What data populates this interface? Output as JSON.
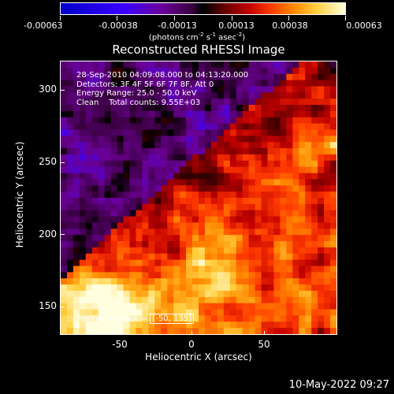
{
  "colorbar": {
    "labels": [
      "-0.00063",
      "-0.00038",
      "-0.00013",
      "0.00013",
      "0.00038",
      "0.00063"
    ],
    "units_prefix": "(photons cm",
    "units_exp1": "-2",
    "units_mid": " s",
    "units_exp2": "-1",
    "units_mid2": " asec",
    "units_exp3": "-2",
    "units_suffix": ")"
  },
  "plot": {
    "title": "Reconstructed RHESSI Image",
    "info_lines": [
      "28-Sep-2010 04:09:08.000 to 04:13:20.000",
      "Detectors: 3F 4F 5F 6F 7F 8F, Att 0",
      "Energy Range: 25.0 - 50.0 keV",
      "Clean    Total counts: 9.55E+03"
    ],
    "peak_label": "Position of Peak = ",
    "peak_value": "[-50, 135]",
    "x_ticks": [
      "-50",
      "0",
      "50"
    ],
    "y_ticks": [
      "300",
      "250",
      "200",
      "150"
    ],
    "xlabel": "Heliocentric X (arcsec)",
    "ylabel": "Heliocentric Y (arcsec)"
  },
  "timestamp": "10-May-2022 09:27"
}
